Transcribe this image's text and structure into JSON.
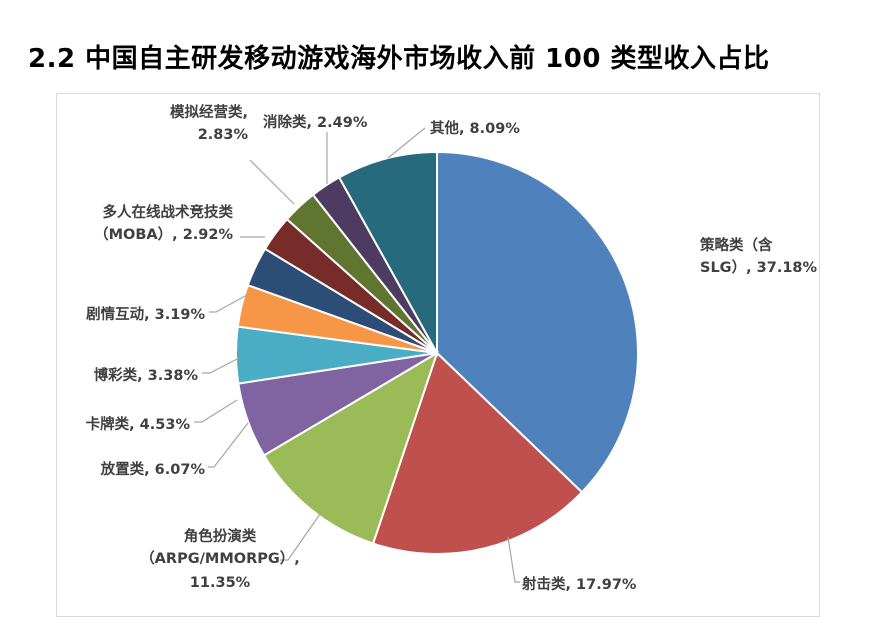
{
  "page": {
    "title": "2.2 中国自主研发移动游戏海外市场收入前 100 类型收入占比"
  },
  "chart_data": {
    "type": "pie",
    "title": "2.2 中国自主研发移动游戏海外市场收入前 100 类型收入占比",
    "unit": "%",
    "slices": [
      {
        "name": "策略类（含SLG）",
        "value": 37.18,
        "color": "#4F81BD",
        "label_lines": [
          "策略类（含",
          "SLG）, 37.18%"
        ]
      },
      {
        "name": "射击类",
        "value": 17.97,
        "color": "#C0504D",
        "label_lines": [
          "射击类, 17.97%"
        ]
      },
      {
        "name": "角色扮演类（ARPG/MMORPG）",
        "value": 11.35,
        "color": "#9BBB59",
        "label_lines": [
          "角色扮演类",
          "（ARPG/MMORPG）,",
          "11.35%"
        ]
      },
      {
        "name": "放置类",
        "value": 6.07,
        "color": "#8064A2",
        "label_lines": [
          "放置类, 6.07%"
        ]
      },
      {
        "name": "卡牌类",
        "value": 4.53,
        "color": "#4BACC6",
        "label_lines": [
          "卡牌类, 4.53%"
        ]
      },
      {
        "name": "博彩类",
        "value": 3.38,
        "color": "#F79646",
        "label_lines": [
          "博彩类, 3.38%"
        ]
      },
      {
        "name": "剧情互动",
        "value": 3.19,
        "color": "#2C4D75",
        "label_lines": [
          "剧情互动, 3.19%"
        ]
      },
      {
        "name": "多人在线战术竞技类（MOBA）",
        "value": 2.92,
        "color": "#772C2A",
        "label_lines": [
          "多人在线战术竞技类",
          "（MOBA）, 2.92%"
        ]
      },
      {
        "name": "模拟经营类",
        "value": 2.83,
        "color": "#5F7530",
        "label_lines": [
          "模拟经营类,",
          "2.83%"
        ]
      },
      {
        "name": "消除类",
        "value": 2.49,
        "color": "#4D3B62",
        "label_lines": [
          "消除类, 2.49%"
        ]
      },
      {
        "name": "其他",
        "value": 8.09,
        "color": "#276A7C",
        "label_lines": [
          "其他, 8.09%"
        ]
      }
    ]
  }
}
